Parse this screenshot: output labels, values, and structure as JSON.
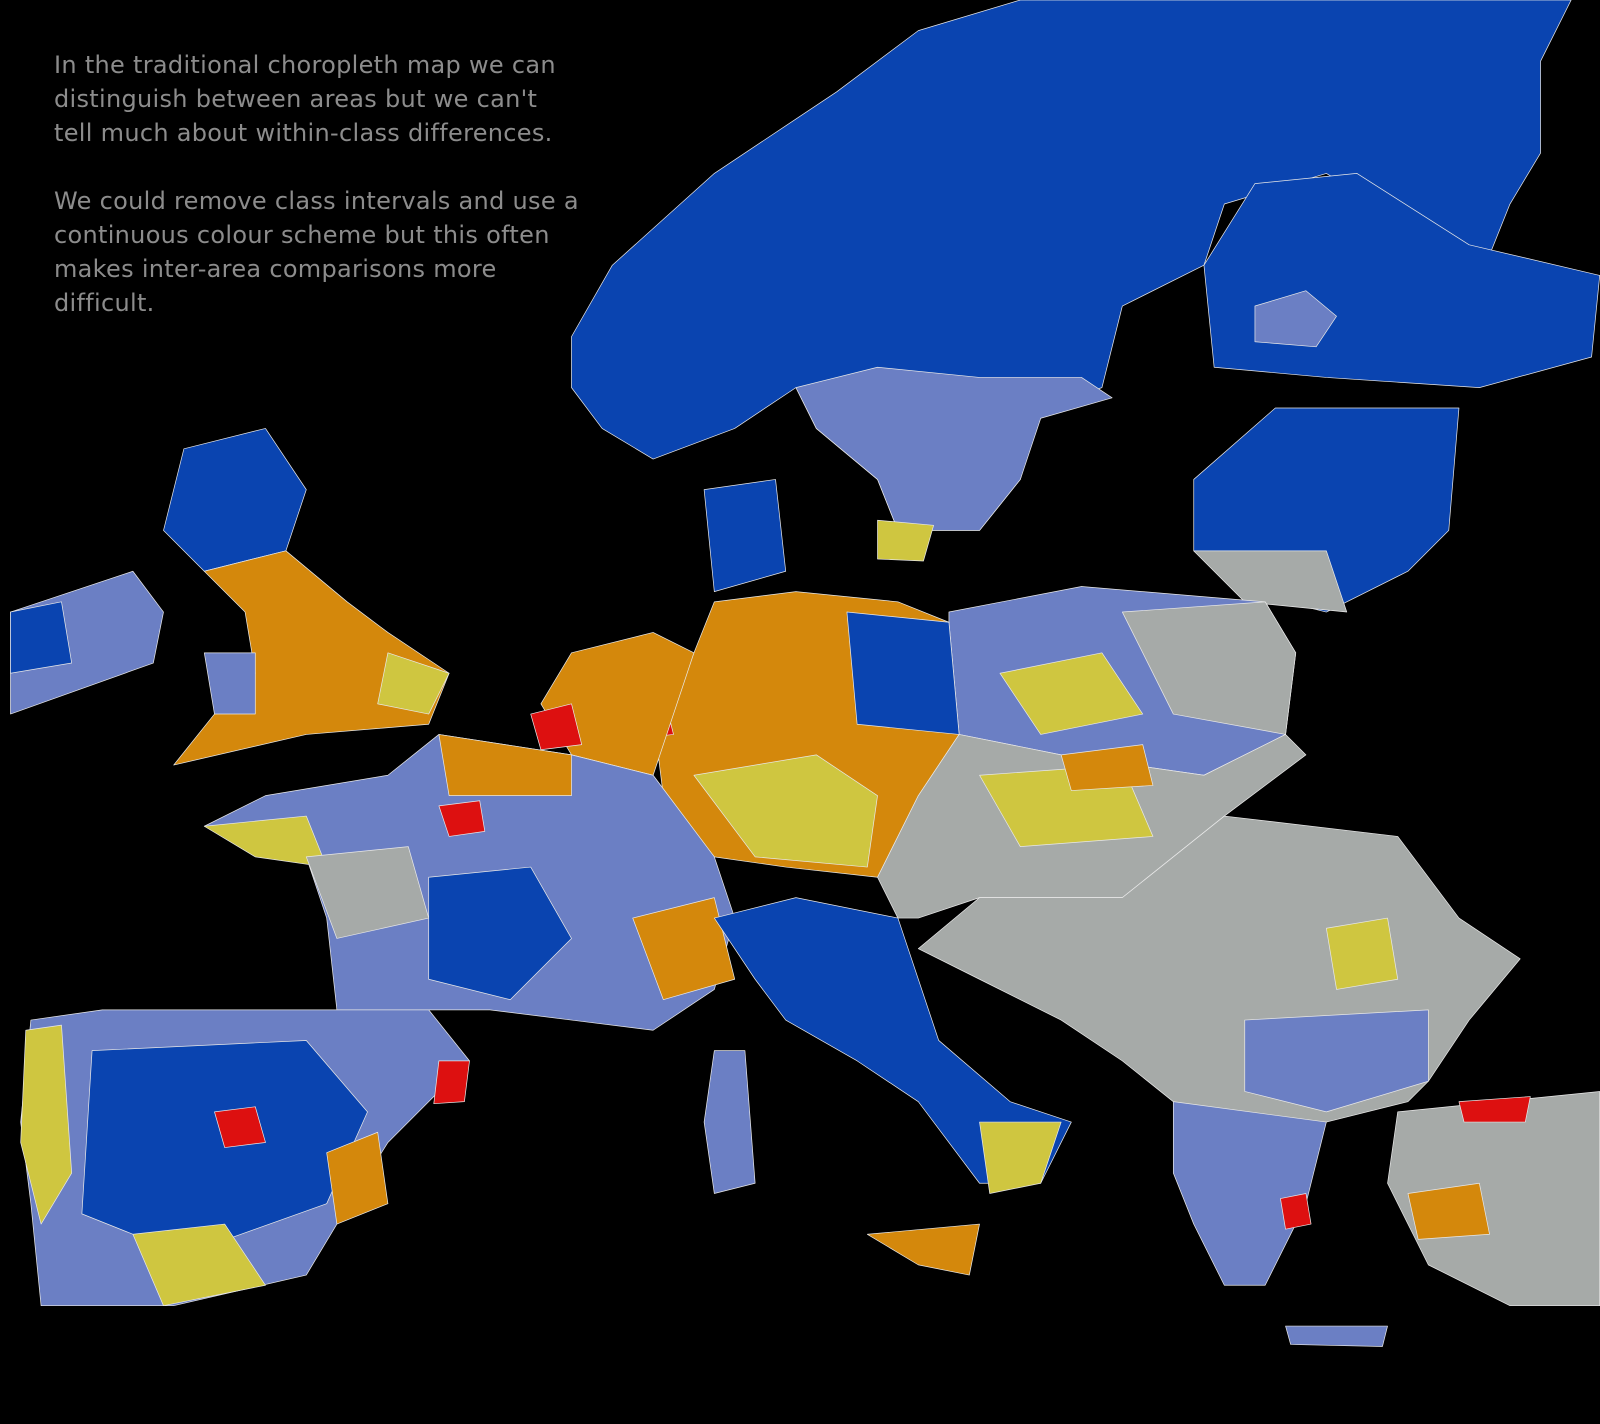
{
  "paragraphs": [
    [
      "In the traditional choropleth map we can",
      "distinguish between areas but we can't",
      "tell much about within-class differences."
    ],
    [
      "We could remove class intervals and use a",
      "continuous colour scheme but this often",
      "makes inter-area comparisons more",
      "difficult."
    ]
  ]
}
